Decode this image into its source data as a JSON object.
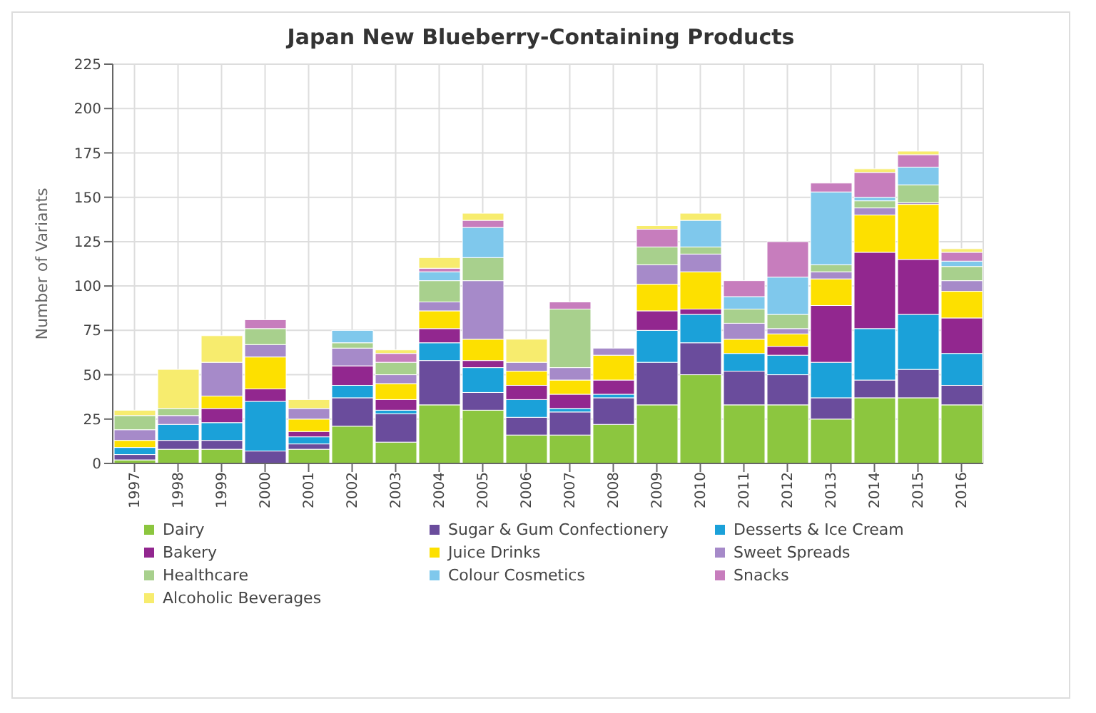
{
  "chart_data": {
    "type": "bar",
    "stacked": true,
    "title": "Japan New Blueberry-Containing Products",
    "ylabel": "Number of Variants",
    "categories": [
      "1997",
      "1998",
      "1999",
      "2000",
      "2001",
      "2002",
      "2003",
      "2004",
      "2005",
      "2006",
      "2007",
      "2008",
      "2009",
      "2010",
      "2011",
      "2012",
      "2013",
      "2014",
      "2015",
      "2016"
    ],
    "ylim": [
      0,
      225
    ],
    "yticks": [
      0,
      25,
      50,
      75,
      100,
      125,
      150,
      175,
      200,
      225
    ],
    "grid": true,
    "legend": "bottom",
    "series": [
      {
        "name": "Dairy",
        "color": "#8cc63f",
        "values": [
          2,
          8,
          8,
          null,
          8,
          21,
          12,
          33,
          30,
          16,
          16,
          22,
          33,
          50,
          33,
          33,
          25,
          37,
          37,
          33
        ]
      },
      {
        "name": "Sugar & Gum Confectionery",
        "color": "#6a4c9c",
        "values": [
          3,
          5,
          5,
          7,
          3,
          16,
          16,
          25,
          10,
          10,
          13,
          15,
          24,
          18,
          19,
          17,
          12,
          10,
          16,
          11
        ]
      },
      {
        "name": "Desserts &  Ice Cream",
        "color": "#1ba1d9",
        "values": [
          4,
          9,
          10,
          28,
          4,
          7,
          2,
          10,
          14,
          10,
          2,
          2,
          18,
          16,
          10,
          11,
          20,
          29,
          31,
          18
        ]
      },
      {
        "name": "Bakery",
        "color": "#92278f",
        "values": [
          0,
          0,
          8,
          7,
          3,
          11,
          6,
          8,
          4,
          8,
          8,
          8,
          11,
          3,
          0,
          5,
          32,
          43,
          31,
          20
        ]
      },
      {
        "name": "Juice Drinks",
        "color": "#fde000",
        "values": [
          4,
          0,
          7,
          18,
          7,
          0,
          9,
          10,
          12,
          8,
          8,
          14,
          15,
          21,
          8,
          7,
          15,
          21,
          31,
          15
        ]
      },
      {
        "name": "Sweet Spreads",
        "color": "#a68ac9",
        "values": [
          6,
          5,
          19,
          7,
          6,
          10,
          5,
          5,
          33,
          5,
          7,
          4,
          11,
          10,
          9,
          3,
          4,
          4,
          1,
          6
        ]
      },
      {
        "name": "Healthcare",
        "color": "#a8d08d",
        "values": [
          8,
          4,
          0,
          9,
          0,
          3,
          7,
          12,
          13,
          0,
          33,
          0,
          10,
          4,
          8,
          8,
          4,
          4,
          10,
          8
        ]
      },
      {
        "name": "Colour Cosmetics",
        "color": "#7fc8ec",
        "values": [
          0,
          0,
          0,
          0,
          0,
          7,
          0,
          5,
          17,
          0,
          0,
          0,
          0,
          15,
          7,
          21,
          41,
          2,
          10,
          3
        ]
      },
      {
        "name": "Snacks",
        "color": "#c77dbd",
        "values": [
          0,
          0,
          0,
          5,
          0,
          0,
          5,
          2,
          4,
          0,
          4,
          0,
          10,
          0,
          9,
          20,
          5,
          14,
          7,
          5
        ]
      },
      {
        "name": "Alcoholic Beverages",
        "color": "#f7ec6e",
        "values": [
          3,
          22,
          15,
          0,
          5,
          0,
          2,
          6,
          4,
          13,
          0,
          0,
          2,
          4,
          0,
          0,
          0,
          2,
          2,
          2
        ]
      }
    ]
  }
}
